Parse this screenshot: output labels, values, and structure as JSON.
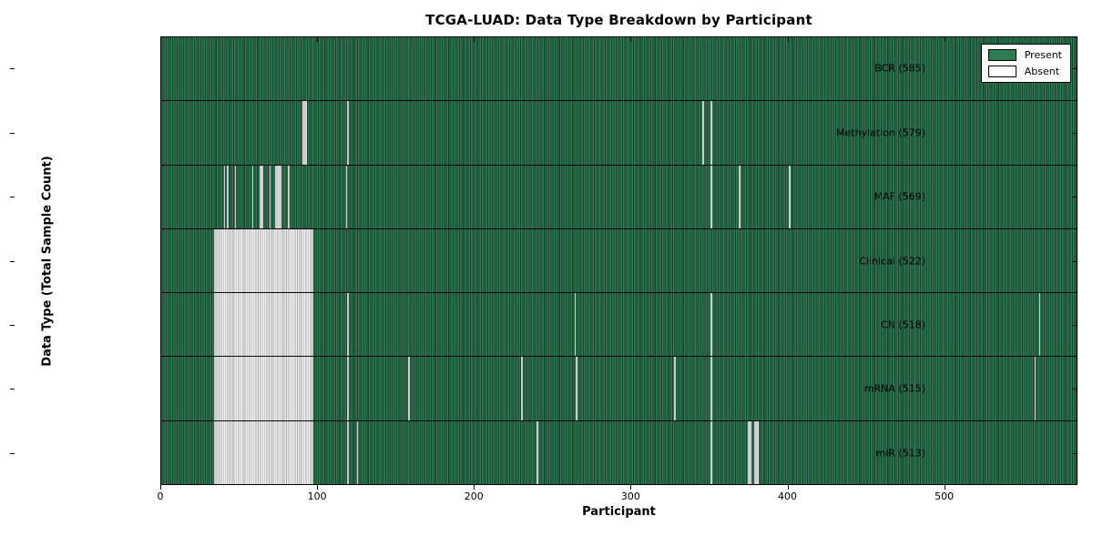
{
  "title": "TCGA-LUAD: Data Type Breakdown by Participant",
  "xlabel": "Participant",
  "ylabel": "Data Type (Total Sample Count)",
  "legend": {
    "present": "Present",
    "absent": "Absent"
  },
  "colors": {
    "present_fill": "#2e7d54",
    "present_edge": "#16402a",
    "absent_fill": "#efefef",
    "absent_edge": "#a9a9a9",
    "background": "#ffffff"
  },
  "chart_data": {
    "type": "heatmap",
    "title": "TCGA-LUAD: Data Type Breakdown by Participant",
    "xlabel": "Participant",
    "ylabel": "Data Type (Total Sample Count)",
    "total_participants": 585,
    "x_range": [
      0,
      585
    ],
    "x_ticks": [
      0,
      100,
      200,
      300,
      400,
      500
    ],
    "legend_position": "upper right",
    "cell_states": [
      "Present",
      "Absent"
    ],
    "rows": [
      {
        "name": "BCR",
        "label": "BCR (585)",
        "count": 585,
        "absent_ranges": []
      },
      {
        "name": "Methylation",
        "label": "Methylation (579)",
        "count": 579,
        "absent_ranges": [
          [
            90,
            93
          ],
          [
            119,
            120
          ],
          [
            346,
            347
          ],
          [
            351,
            352
          ]
        ]
      },
      {
        "name": "MAF",
        "label": "MAF (569)",
        "count": 569,
        "absent_ranges": [
          [
            40,
            41
          ],
          [
            42,
            43
          ],
          [
            47,
            48
          ],
          [
            58,
            59
          ],
          [
            63,
            65
          ],
          [
            69,
            70
          ],
          [
            73,
            77
          ],
          [
            81,
            82
          ],
          [
            118,
            119
          ],
          [
            351,
            352
          ],
          [
            369,
            370
          ],
          [
            401,
            402
          ]
        ]
      },
      {
        "name": "Clinical",
        "label": "Clinical (522)",
        "count": 522,
        "absent_ranges": [
          [
            34,
            97
          ]
        ]
      },
      {
        "name": "CN",
        "label": "CN (518)",
        "count": 518,
        "absent_ranges": [
          [
            34,
            97
          ],
          [
            119,
            120
          ],
          [
            264,
            265
          ],
          [
            351,
            352
          ],
          [
            561,
            562
          ]
        ]
      },
      {
        "name": "mRNA",
        "label": "mRNA (515)",
        "count": 515,
        "absent_ranges": [
          [
            34,
            97
          ],
          [
            119,
            120
          ],
          [
            158,
            159
          ],
          [
            230,
            231
          ],
          [
            265,
            266
          ],
          [
            328,
            329
          ],
          [
            351,
            352
          ],
          [
            558,
            559
          ]
        ]
      },
      {
        "name": "miR",
        "label": "miR (513)",
        "count": 513,
        "absent_ranges": [
          [
            34,
            97
          ],
          [
            119,
            120
          ],
          [
            125,
            126
          ],
          [
            240,
            241
          ],
          [
            351,
            352
          ],
          [
            375,
            377
          ],
          [
            379,
            382
          ]
        ]
      }
    ]
  }
}
